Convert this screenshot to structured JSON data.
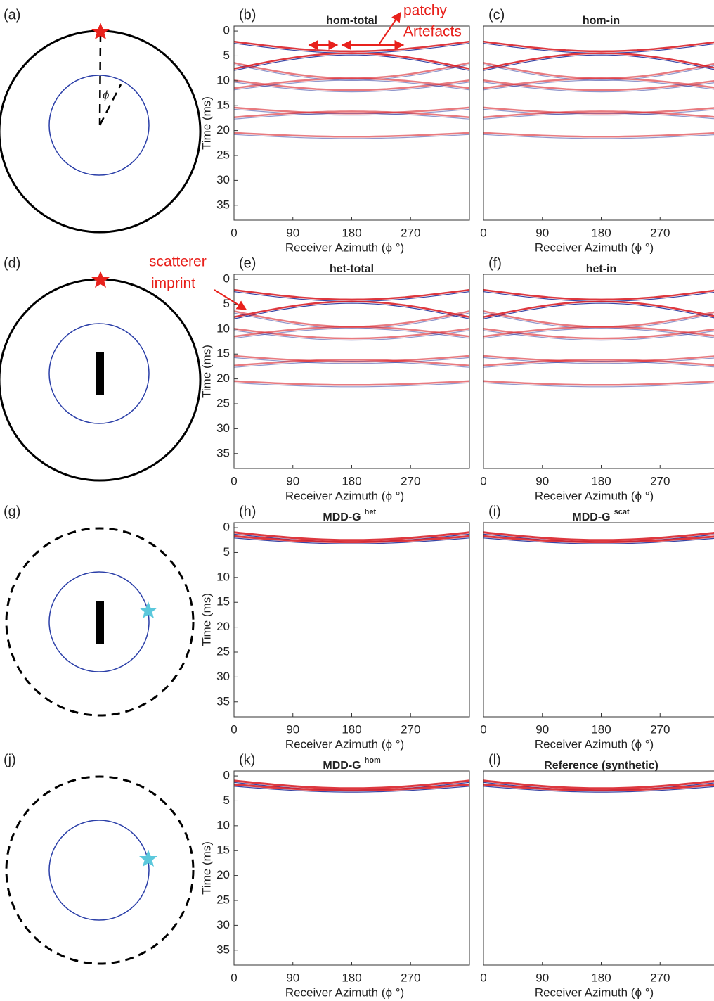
{
  "diagrams": [
    {
      "label": "(a)",
      "angle_symbol": "ϕ"
    },
    {
      "label": "(d)"
    },
    {
      "label": "(g)"
    },
    {
      "label": "(j)"
    }
  ],
  "annotations": {
    "artefacts": [
      "patchy",
      "Artefacts"
    ],
    "scatterer": [
      "scatterer",
      "imprint"
    ]
  },
  "chart_data": [
    {
      "type": "image",
      "label": "(b)",
      "title": "hom-total",
      "xlabel": "Receiver Azimuth (ϕ °)",
      "ylabel": "Time (ms)",
      "xlim": [
        0,
        360
      ],
      "ylim": [
        -1,
        38
      ],
      "y_reversed": true,
      "xticks": [
        0,
        90,
        180,
        270
      ],
      "yticks": [
        0,
        5,
        10,
        15,
        20,
        25,
        30,
        35
      ]
    },
    {
      "type": "image",
      "label": "(c)",
      "title": "hom-in",
      "xlabel": "Receiver Azimuth (ϕ °)",
      "xlim": [
        0,
        360
      ],
      "ylim": [
        -1,
        38
      ],
      "y_reversed": true,
      "xticks": [
        0,
        90,
        180,
        270
      ]
    },
    {
      "type": "image",
      "label": "(e)",
      "title": "het-total",
      "xlabel": "Receiver Azimuth (ϕ °)",
      "ylabel": "Time (ms)",
      "xlim": [
        0,
        360
      ],
      "ylim": [
        -1,
        38
      ],
      "y_reversed": true,
      "xticks": [
        0,
        90,
        180,
        270
      ],
      "yticks": [
        0,
        5,
        10,
        15,
        20,
        25,
        30,
        35
      ]
    },
    {
      "type": "image",
      "label": "(f)",
      "title": "het-in",
      "xlabel": "Receiver Azimuth (ϕ °)",
      "xlim": [
        0,
        360
      ],
      "ylim": [
        -1,
        38
      ],
      "y_reversed": true,
      "xticks": [
        0,
        90,
        180,
        270
      ]
    },
    {
      "type": "image",
      "label": "(h)",
      "title": "MDD-G",
      "title_superscript": "het",
      "xlabel": "Receiver Azimuth (ϕ °)",
      "ylabel": "Time (ms)",
      "xlim": [
        0,
        360
      ],
      "ylim": [
        -1,
        38
      ],
      "y_reversed": true,
      "xticks": [
        0,
        90,
        180,
        270
      ],
      "yticks": [
        0,
        5,
        10,
        15,
        20,
        25,
        30,
        35
      ]
    },
    {
      "type": "image",
      "label": "(i)",
      "title": "MDD-G",
      "title_superscript": "scat",
      "xlabel": "Receiver Azimuth (ϕ °)",
      "xlim": [
        0,
        360
      ],
      "ylim": [
        -1,
        38
      ],
      "y_reversed": true,
      "xticks": [
        0,
        90,
        180,
        270
      ]
    },
    {
      "type": "image",
      "label": "(k)",
      "title": "MDD-G",
      "title_superscript": "hom",
      "xlabel": "Receiver Azimuth (ϕ °)",
      "ylabel": "Time (ms)",
      "xlim": [
        0,
        360
      ],
      "ylim": [
        -1,
        38
      ],
      "y_reversed": true,
      "xticks": [
        0,
        90,
        180,
        270
      ],
      "yticks": [
        0,
        5,
        10,
        15,
        20,
        25,
        30,
        35
      ]
    },
    {
      "type": "image",
      "label": "(l)",
      "title": "Reference (synthetic)",
      "xlabel": "Receiver Azimuth (ϕ °)",
      "xlim": [
        0,
        360
      ],
      "ylim": [
        -1,
        38
      ],
      "y_reversed": true,
      "xticks": [
        0,
        90,
        180,
        270
      ]
    }
  ]
}
